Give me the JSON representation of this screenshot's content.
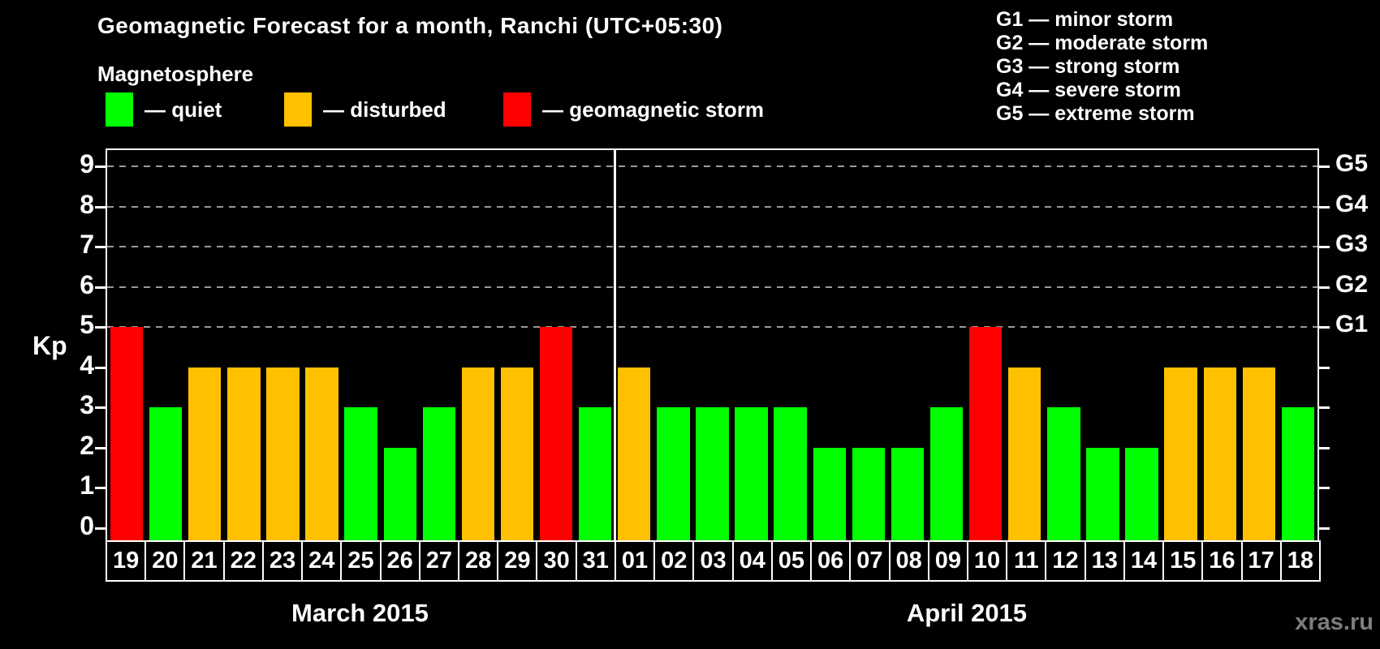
{
  "title": "Geomagnetic Forecast for a month, Ranchi (UTC+05:30)",
  "legend": {
    "heading": "Magnetosphere",
    "items": [
      {
        "label": "— quiet",
        "status": "quiet"
      },
      {
        "label": "— disturbed",
        "status": "disturbed"
      },
      {
        "label": "— geomagnetic storm",
        "status": "storm"
      }
    ]
  },
  "g_legend": {
    "items": [
      "G1 — minor storm",
      "G2 — moderate storm",
      "G3 — strong storm",
      "G4 — severe storm",
      "G5 — extreme storm"
    ]
  },
  "colors": {
    "quiet": "#00ff00",
    "disturbed": "#ffc000",
    "storm": "#ff0000",
    "grid": "#9a9a9a",
    "frame": "#ffffff",
    "watermark": "#7d7d7d"
  },
  "axis": {
    "ylabel": "Kp"
  },
  "watermark": "xras.ru",
  "chart_data": {
    "type": "bar",
    "title": "Geomagnetic Forecast for a month, Ranchi (UTC+05:30)",
    "ylabel": "Kp",
    "ylim": [
      0,
      9
    ],
    "grid": "horizontal dashed lines at Kp 5-9 only",
    "gridlines_at": [
      5,
      6,
      7,
      8,
      9
    ],
    "right_axis_labels": {
      "5": "G1",
      "6": "G2",
      "7": "G3",
      "8": "G4",
      "9": "G5"
    },
    "legend_position": "top-left",
    "months": [
      {
        "label": "March 2015",
        "categories": [
          "19",
          "20",
          "21",
          "22",
          "23",
          "24",
          "25",
          "26",
          "27",
          "28",
          "29",
          "30",
          "31"
        ],
        "values": [
          5,
          3,
          4,
          4,
          4,
          4,
          3,
          2,
          3,
          4,
          4,
          5,
          3
        ],
        "statuses": [
          "storm",
          "quiet",
          "disturbed",
          "disturbed",
          "disturbed",
          "disturbed",
          "quiet",
          "quiet",
          "quiet",
          "disturbed",
          "disturbed",
          "storm",
          "quiet"
        ]
      },
      {
        "label": "April 2015",
        "categories": [
          "01",
          "02",
          "03",
          "04",
          "05",
          "06",
          "07",
          "08",
          "09",
          "10",
          "11",
          "12",
          "13",
          "14",
          "15",
          "16",
          "17",
          "18"
        ],
        "values": [
          4,
          3,
          3,
          3,
          3,
          2,
          2,
          2,
          3,
          5,
          4,
          3,
          2,
          2,
          4,
          4,
          4,
          3
        ],
        "statuses": [
          "disturbed",
          "quiet",
          "quiet",
          "quiet",
          "quiet",
          "quiet",
          "quiet",
          "quiet",
          "quiet",
          "storm",
          "disturbed",
          "quiet",
          "quiet",
          "quiet",
          "disturbed",
          "disturbed",
          "disturbed",
          "quiet"
        ]
      }
    ]
  }
}
